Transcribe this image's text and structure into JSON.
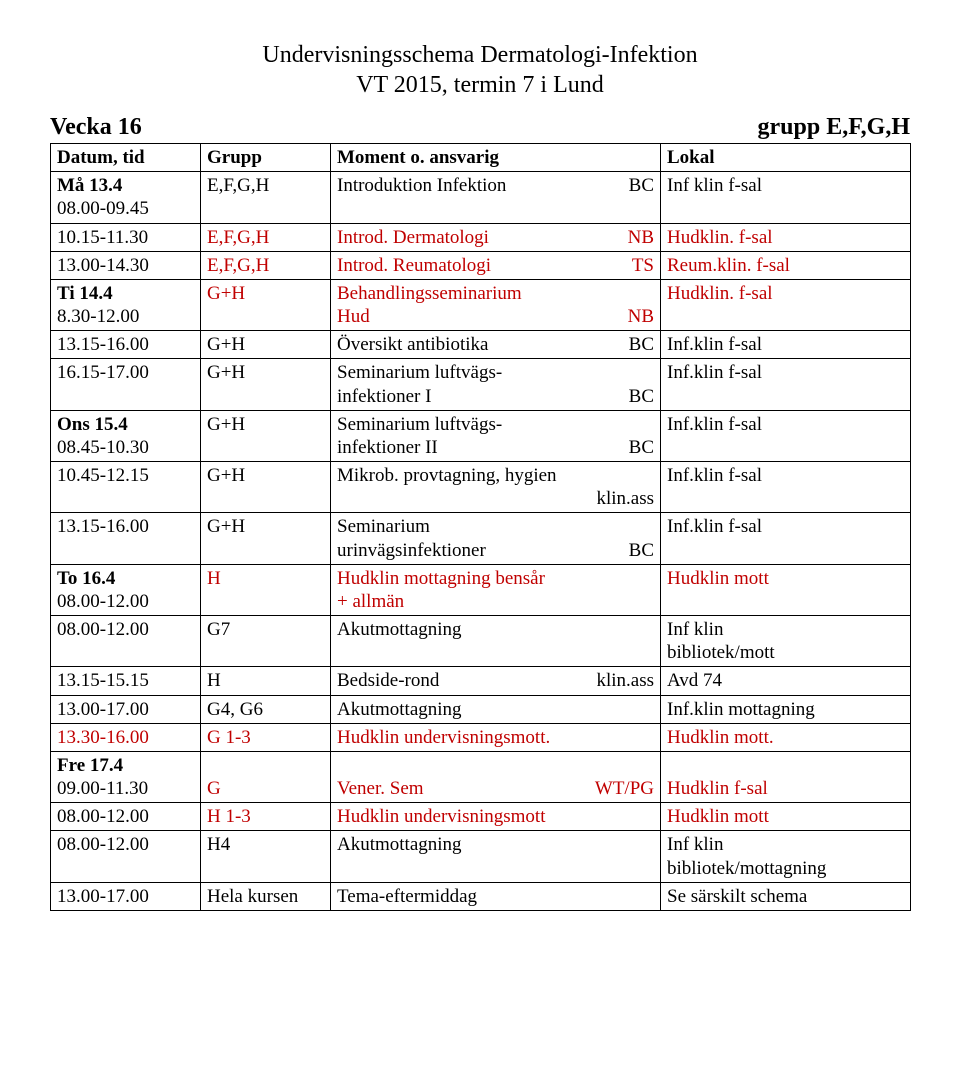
{
  "title_line1": "Undervisningsschema Dermatologi-Infektion",
  "title_line2": "VT 2015, termin 7 i Lund",
  "week_left": "Vecka 16",
  "week_right": "grupp E,F,G,H",
  "head": {
    "c0": "Datum, tid",
    "c1": "Grupp",
    "c2": "Moment o. ansvarig",
    "c3": "Lokal"
  },
  "rows": [
    {
      "c0": [
        {
          "t": "Må 13.4",
          "bold": true
        },
        {
          "t": "08.00-09.45"
        }
      ],
      "c1": [
        {
          "t": "E,F,G,H"
        }
      ],
      "c2": [
        {
          "l": "Introduktion Infektion",
          "r": "BC"
        }
      ],
      "c3": [
        {
          "t": "Inf klin f-sal"
        }
      ]
    },
    {
      "c0": [
        {
          "t": "10.15-11.30"
        }
      ],
      "c1": [
        {
          "t": "E,F,G,H",
          "red": true
        }
      ],
      "c2": [
        {
          "l": "Introd. Dermatologi",
          "r": "NB",
          "red": true
        }
      ],
      "c3": [
        {
          "t": "Hudklin. f-sal",
          "red": true
        }
      ]
    },
    {
      "c0": [
        {
          "t": "13.00-14.30"
        }
      ],
      "c1": [
        {
          "t": "E,F,G,H",
          "red": true
        }
      ],
      "c2": [
        {
          "l": "Introd. Reumatologi",
          "r": "TS",
          "red": true
        }
      ],
      "c3": [
        {
          "t": "Reum.klin. f-sal",
          "red": true
        }
      ]
    },
    {
      "c0": [
        {
          "t": "Ti 14.4",
          "bold": true
        },
        {
          "t": "8.30-12.00"
        }
      ],
      "c1": [
        {
          "t": "G+H",
          "red": true
        }
      ],
      "c2": [
        {
          "l": "Behandlingsseminarium",
          "r": "",
          "red": true
        },
        {
          "l": " Hud",
          "r": "NB",
          "red": true
        }
      ],
      "c3": [
        {
          "t": "Hudklin. f-sal",
          "red": true
        }
      ]
    },
    {
      "c0": [
        {
          "t": "13.15-16.00"
        }
      ],
      "c1": [
        {
          "t": "G+H"
        }
      ],
      "c2": [
        {
          "l": "Översikt antibiotika",
          "r": "BC"
        }
      ],
      "c3": [
        {
          "t": "Inf.klin f-sal"
        }
      ]
    },
    {
      "c0": [
        {
          "t": "16.15-17.00"
        }
      ],
      "c1": [
        {
          "t": "G+H"
        }
      ],
      "c2": [
        {
          "l": "Seminarium luftvägs-",
          "r": ""
        },
        {
          "l": "infektioner  I",
          "r": "BC"
        }
      ],
      "c3": [
        {
          "t": "Inf.klin f-sal"
        }
      ]
    },
    {
      "c0": [
        {
          "t": "Ons 15.4",
          "bold": true
        },
        {
          "t": "08.45-10.30"
        }
      ],
      "c1": [
        {
          "t": "G+H"
        }
      ],
      "c2": [
        {
          "l": "Seminarium luftvägs-",
          "r": ""
        },
        {
          "l": "infektioner II",
          "r": "BC"
        }
      ],
      "c3": [
        {
          "t": "Inf.klin f-sal"
        }
      ]
    },
    {
      "c0": [
        {
          "t": "10.45-12.15"
        }
      ],
      "c1": [
        {
          "t": "G+H"
        }
      ],
      "c2": [
        {
          "l": "Mikrob. provtagning, hygien",
          "r": ""
        },
        {
          "l": "",
          "r": "klin.ass"
        }
      ],
      "c3": [
        {
          "t": "Inf.klin f-sal"
        }
      ]
    },
    {
      "c0": [
        {
          "t": "13.15-16.00"
        }
      ],
      "c1": [
        {
          "t": "G+H"
        }
      ],
      "c2": [
        {
          "l": "Seminarium",
          "r": ""
        },
        {
          "l": "urinvägsinfektioner",
          "r": "BC"
        }
      ],
      "c3": [
        {
          "t": "Inf.klin f-sal"
        }
      ]
    },
    {
      "c0": [
        {
          "t": "To 16.4",
          "bold": true
        },
        {
          "t": "08.00-12.00"
        }
      ],
      "c1": [
        {
          "t": "H",
          "red": true
        }
      ],
      "c2": [
        {
          "l": "Hudklin  mottagning bensår",
          "r": "",
          "red": true
        },
        {
          "l": "+ allmän",
          "r": "",
          "red": true
        }
      ],
      "c3": [
        {
          "t": "Hudklin mott",
          "red": true
        }
      ]
    },
    {
      "c0": [
        {
          "t": "08.00-12.00"
        }
      ],
      "c1": [
        {
          "t": "G7"
        }
      ],
      "c2": [
        {
          "l": "Akutmottagning",
          "r": ""
        }
      ],
      "c3": [
        {
          "t": "Inf klin"
        },
        {
          "t": "bibliotek/mott"
        }
      ]
    },
    {
      "c0": [
        {
          "t": "13.15-15.15"
        }
      ],
      "c1": [
        {
          "t": "H"
        }
      ],
      "c2": [
        {
          "l": "Bedside-rond",
          "r": "klin.ass"
        }
      ],
      "c3": [
        {
          "t": "Avd 74"
        }
      ]
    },
    {
      "c0": [
        {
          "t": "13.00-17.00"
        }
      ],
      "c1": [
        {
          "t": "G4, G6"
        }
      ],
      "c2": [
        {
          "l": "Akutmottagning",
          "r": ""
        }
      ],
      "c3": [
        {
          "t": "Inf.klin mottagning"
        }
      ]
    },
    {
      "c0": [
        {
          "t": "13.30-16.00",
          "red": true
        }
      ],
      "c1": [
        {
          "t": "G 1-3",
          "red": true
        }
      ],
      "c2": [
        {
          "l": "Hudklin undervisningsmott.",
          "r": "",
          "red": true
        }
      ],
      "c3": [
        {
          "t": "Hudklin mott.",
          "red": true
        }
      ]
    },
    {
      "c0": [
        {
          "t": "Fre 17.4",
          "bold": true
        },
        {
          "t": "09.00-11.30"
        }
      ],
      "c1": [
        {
          "t": ""
        },
        {
          "t": "G",
          "red": true
        }
      ],
      "c2": [
        {
          "l": "",
          "r": ""
        },
        {
          "l": "Vener. Sem",
          "r": "WT/PG",
          "red": true
        }
      ],
      "c3": [
        {
          "t": ""
        },
        {
          "t": "Hudklin f-sal",
          "red": true
        }
      ]
    },
    {
      "c0": [
        {
          "t": "08.00-12.00"
        }
      ],
      "c1": [
        {
          "t": "H 1-3",
          "red": true
        }
      ],
      "c2": [
        {
          "l": "Hudklin undervisningsmott",
          "r": "",
          "red": true
        }
      ],
      "c3": [
        {
          "t": "Hudklin mott",
          "red": true
        }
      ]
    },
    {
      "c0": [
        {
          "t": "08.00-12.00"
        }
      ],
      "c1": [
        {
          "t": "H4"
        }
      ],
      "c2": [
        {
          "l": "Akutmottagning",
          "r": ""
        }
      ],
      "c3": [
        {
          "t": "Inf klin"
        },
        {
          "t": "bibliotek/mottagning"
        }
      ]
    },
    {
      "c0": [
        {
          "t": "13.00-17.00"
        }
      ],
      "c1": [
        {
          "t": "Hela kursen"
        }
      ],
      "c2": [
        {
          "l": "Tema-eftermiddag",
          "r": ""
        }
      ],
      "c3": [
        {
          "t": "Se särskilt schema"
        }
      ]
    }
  ]
}
